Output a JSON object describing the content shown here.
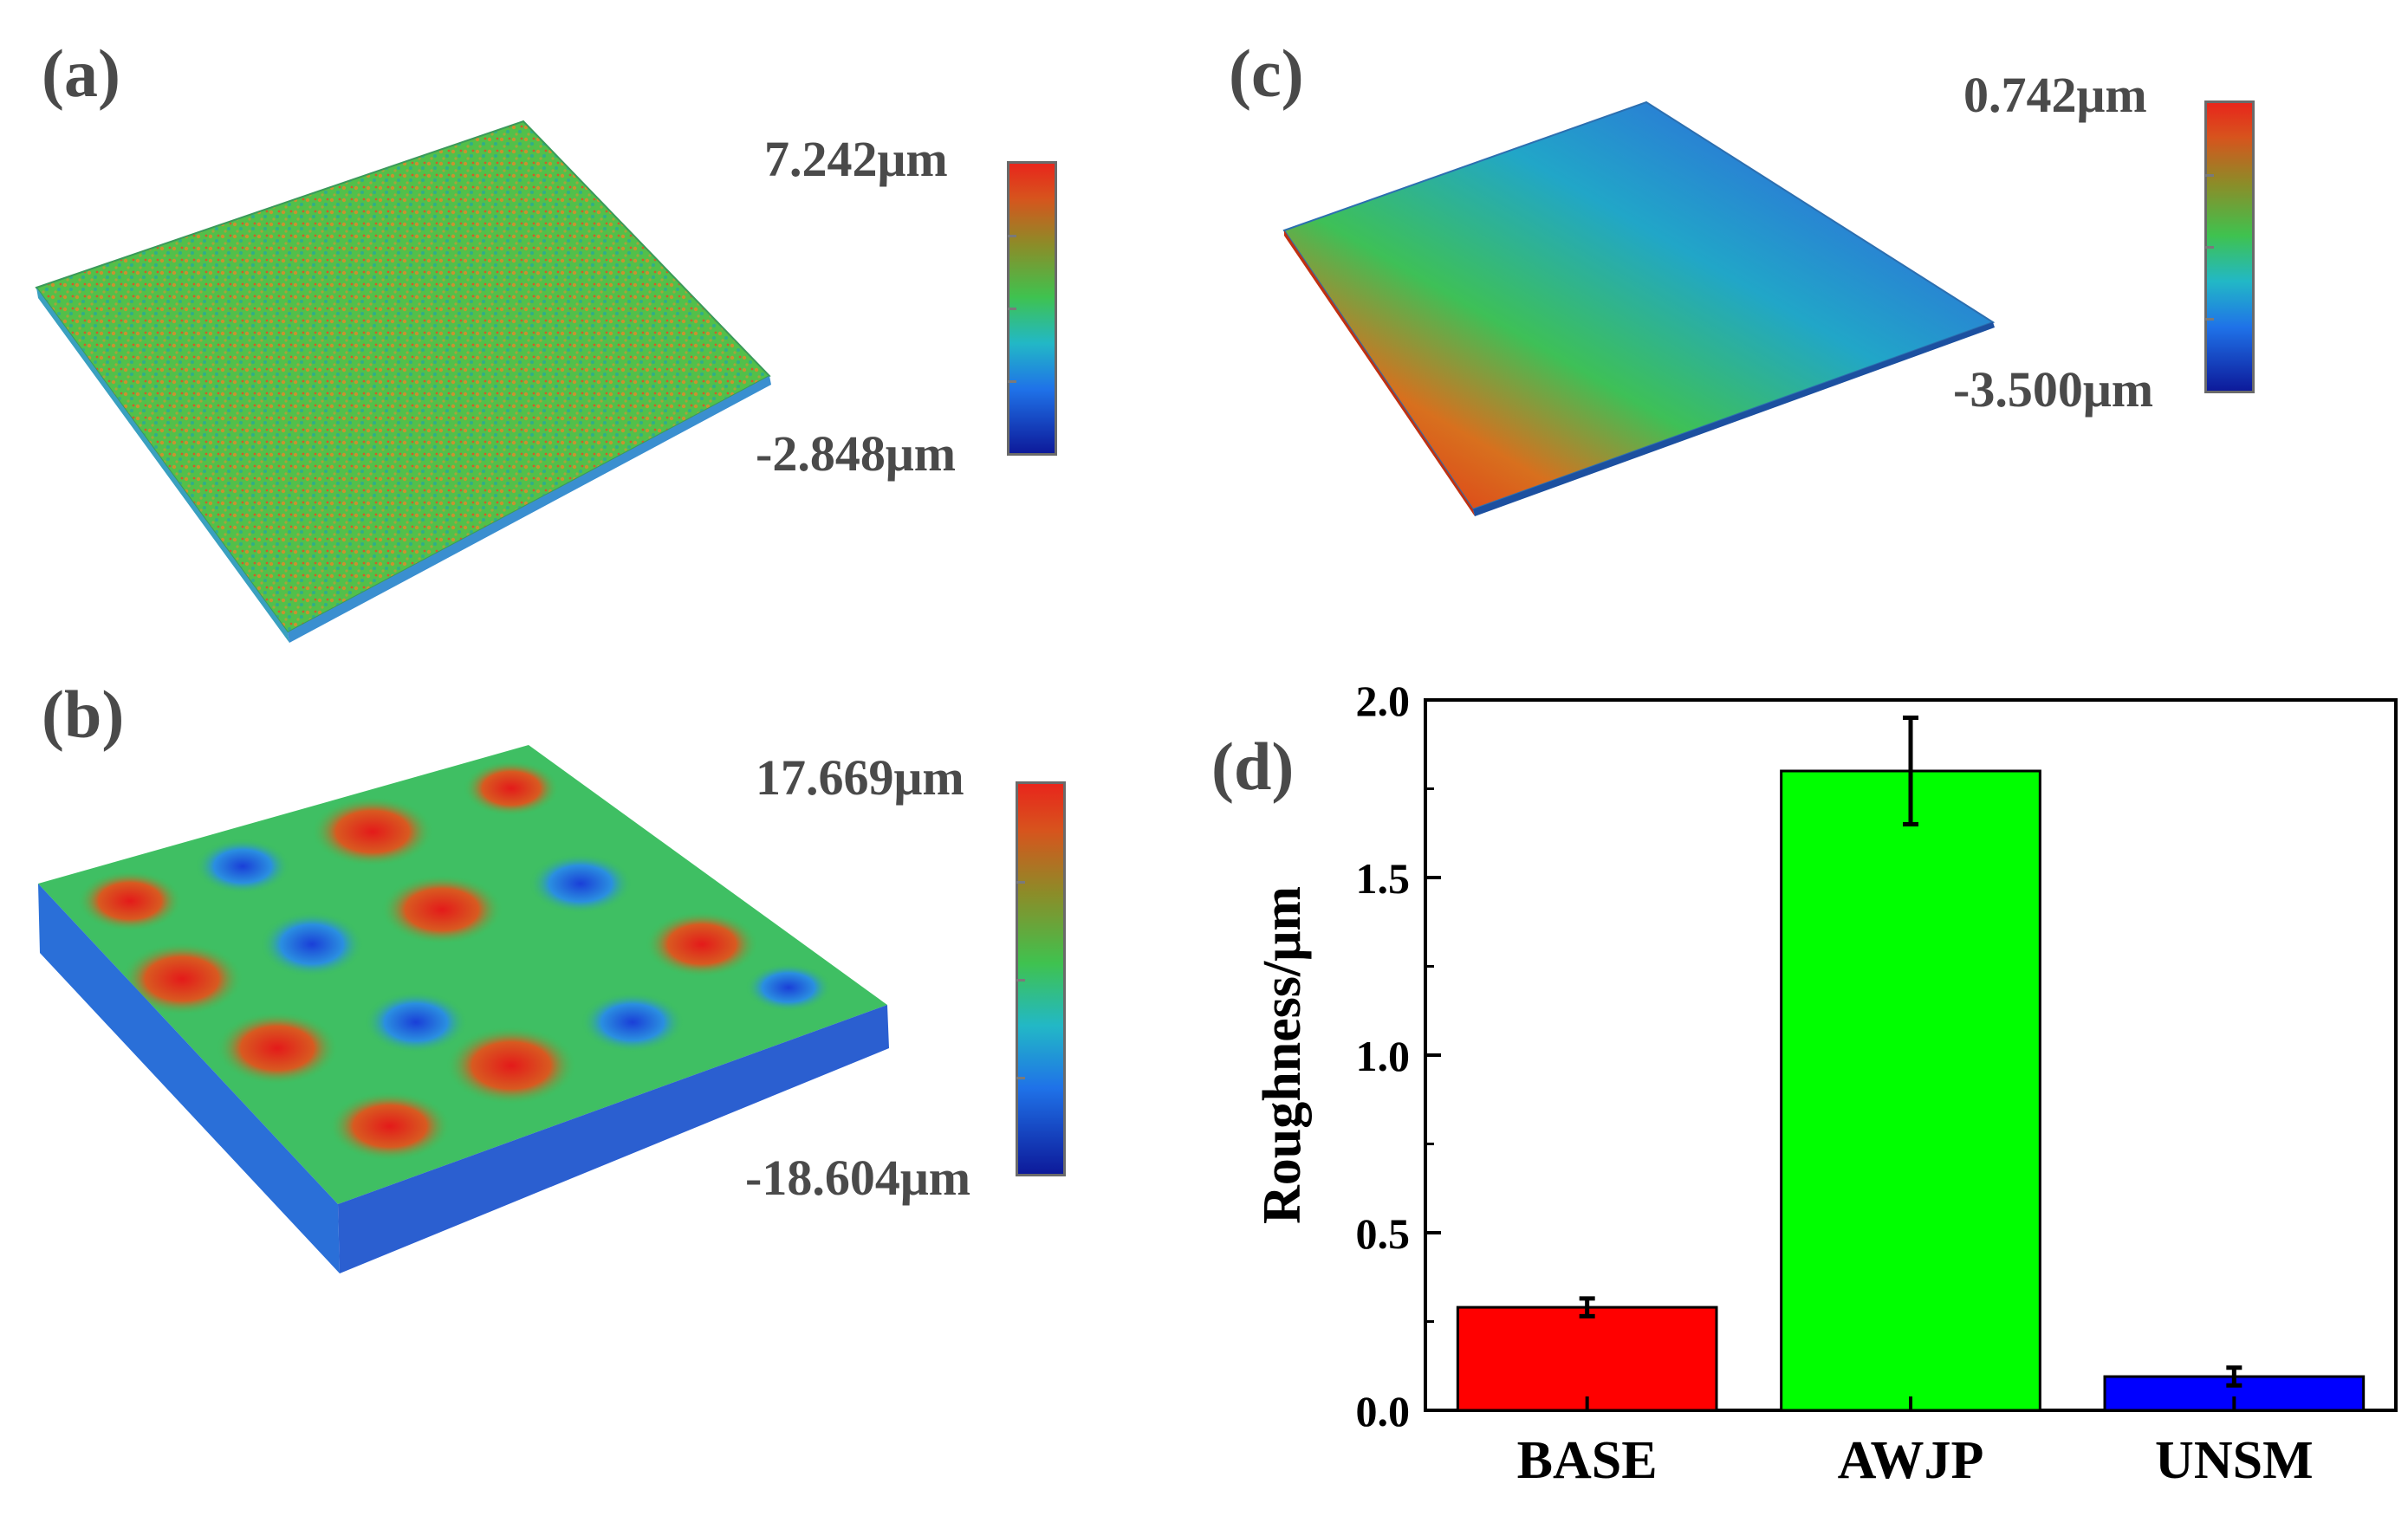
{
  "panels": {
    "a": {
      "label": "(a)",
      "cbar_max": "7.242μm",
      "cbar_min": "-2.848μm"
    },
    "b": {
      "label": "(b)",
      "cbar_max": "17.669μm",
      "cbar_min": "-18.604μm"
    },
    "c": {
      "label": "(c)",
      "cbar_max": "0.742μm",
      "cbar_min": "-3.500μm"
    },
    "d": {
      "label": "(d)"
    }
  },
  "colors": {
    "base": "#ff0000",
    "awjp": "#00ff00",
    "unsm": "#0000ff"
  },
  "chart_data": {
    "type": "bar",
    "title": "",
    "xlabel": "",
    "ylabel": "Roughness/μm",
    "categories": [
      "BASE",
      "AWJP",
      "UNSM"
    ],
    "values": [
      0.29,
      1.8,
      0.095
    ],
    "errors": [
      0.025,
      0.15,
      0.025
    ],
    "bar_colors": [
      "#ff0000",
      "#00ff00",
      "#0000ff"
    ],
    "ylim": [
      0,
      2.0
    ],
    "yticks": [
      0.0,
      0.5,
      1.0,
      1.5,
      2.0
    ],
    "ytick_labels": [
      "0.0",
      "0.5",
      "1.0",
      "1.5",
      "2.0"
    ],
    "grid": false
  }
}
